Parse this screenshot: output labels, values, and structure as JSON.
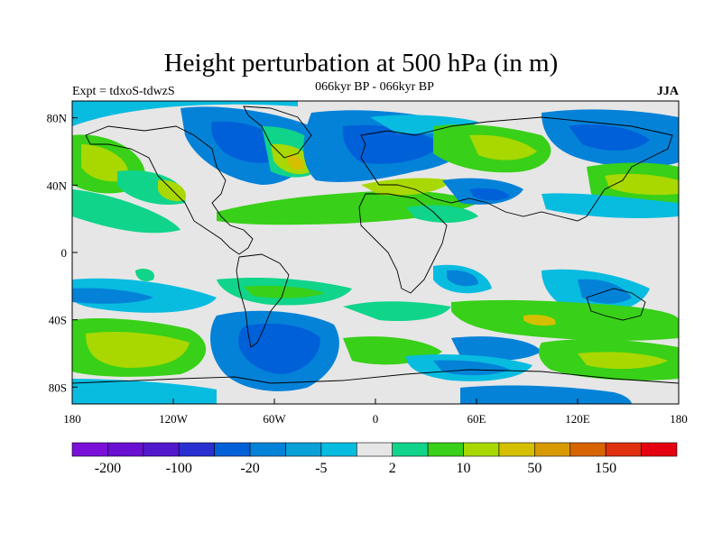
{
  "title": "Height perturbation at 500 hPa (in m)",
  "subtitle": "066kyr BP - 066kyr BP",
  "experiment": "Expt = tdxoS-tdwzS",
  "season": "JJA",
  "map": {
    "projection": "cylindrical-equidistant",
    "lon_range": [
      -180,
      180
    ],
    "lat_range": [
      -90,
      90
    ],
    "ocean_background": "#e6e6e6",
    "y_ticks": [
      "80N",
      "40N",
      "0",
      "40S",
      "80S"
    ],
    "x_ticks": [
      "180",
      "120W",
      "60W",
      "0",
      "60E",
      "120E",
      "180"
    ]
  },
  "colorbar": {
    "colors": [
      "#7b10d8",
      "#6a10d2",
      "#5218cc",
      "#2a30d0",
      "#0060d8",
      "#0482d8",
      "#0aa0d8",
      "#08bce0",
      "#e6e6e6",
      "#10d48a",
      "#38d018",
      "#a8d800",
      "#d4c000",
      "#d89a00",
      "#d86400",
      "#e03010",
      "#e40010"
    ],
    "labels": [
      {
        "text": "-200",
        "boundary": 1
      },
      {
        "text": "-100",
        "boundary": 3
      },
      {
        "text": "-20",
        "boundary": 5
      },
      {
        "text": "-5",
        "boundary": 7
      },
      {
        "text": "2",
        "boundary": 9
      },
      {
        "text": "10",
        "boundary": 11
      },
      {
        "text": "50",
        "boundary": 13
      },
      {
        "text": "150",
        "boundary": 15
      }
    ]
  }
}
